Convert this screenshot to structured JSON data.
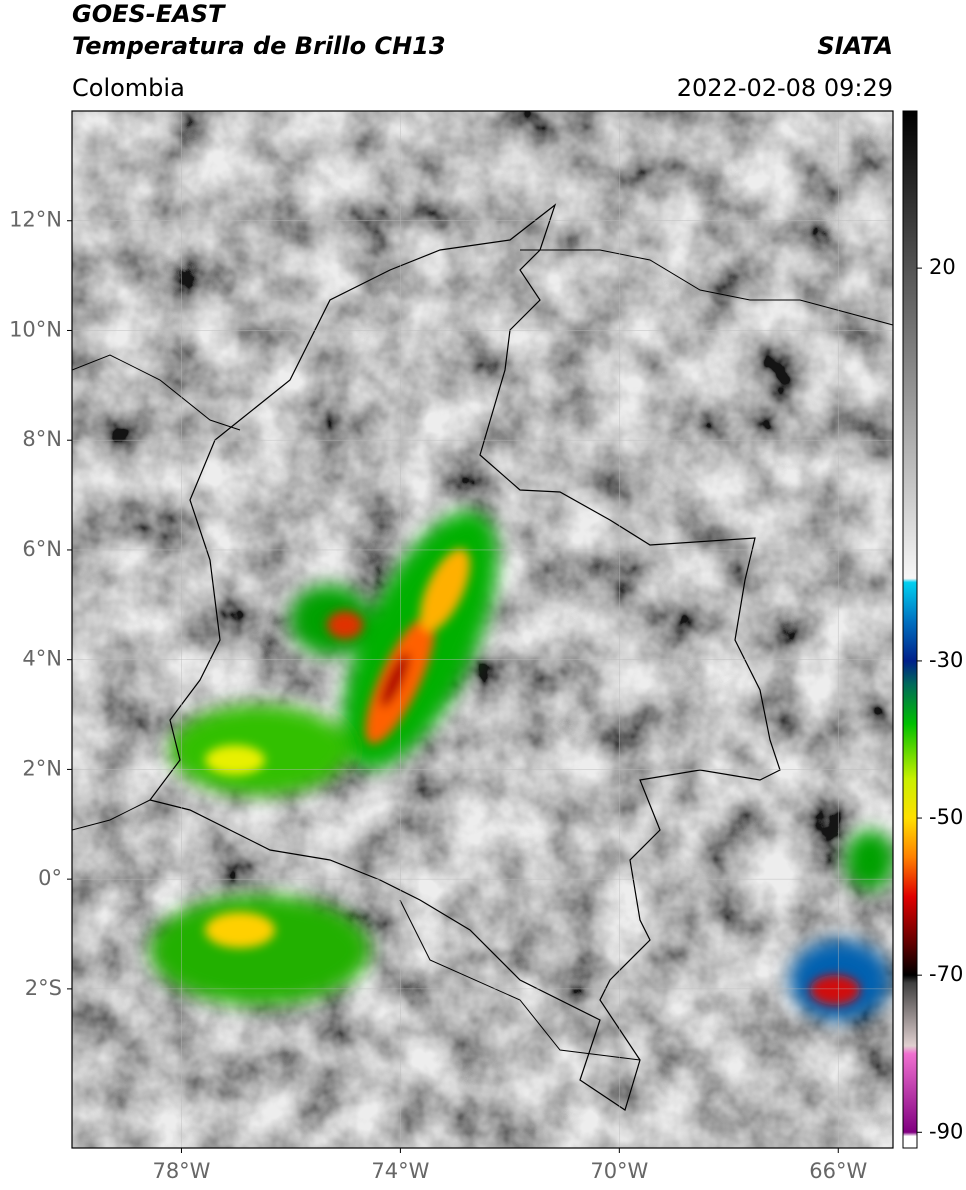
{
  "header": {
    "title": "GOES-EAST",
    "subtitle": "Temperatura de Brillo CH13",
    "source": "SIATA",
    "region": "Colombia",
    "datetime": "2022-02-08 09:29"
  },
  "map": {
    "xlim": [
      -80,
      -65
    ],
    "ylim": [
      -4.9,
      14
    ],
    "grid": true,
    "xticks": [
      {
        "value": -78,
        "label": "78°W"
      },
      {
        "value": -74,
        "label": "74°W"
      },
      {
        "value": -70,
        "label": "70°W"
      },
      {
        "value": -66,
        "label": "66°W"
      }
    ],
    "yticks": [
      {
        "value": 12,
        "label": "12°N"
      },
      {
        "value": 10,
        "label": "10°N"
      },
      {
        "value": 8,
        "label": "8°N"
      },
      {
        "value": 6,
        "label": "6°N"
      },
      {
        "value": 4,
        "label": "4°N"
      },
      {
        "value": 2,
        "label": "2°N"
      },
      {
        "value": 0,
        "label": "0°"
      },
      {
        "value": -2,
        "label": "2°S"
      }
    ]
  },
  "colorbar": {
    "lim": [
      -92,
      40
    ],
    "ticks": [
      20,
      -30,
      -50,
      -70,
      -90
    ],
    "stops": [
      {
        "value": 40,
        "color": "#000000"
      },
      {
        "value": -19.5,
        "color": "#f7f7f7"
      },
      {
        "value": -20,
        "color": "#00d0f0"
      },
      {
        "value": -25,
        "color": "#0070c0"
      },
      {
        "value": -30,
        "color": "#00208a"
      },
      {
        "value": -33,
        "color": "#006a5a"
      },
      {
        "value": -38,
        "color": "#00c000"
      },
      {
        "value": -45,
        "color": "#c8f000"
      },
      {
        "value": -50,
        "color": "#ffe000"
      },
      {
        "value": -55,
        "color": "#ff8000"
      },
      {
        "value": -60,
        "color": "#e00000"
      },
      {
        "value": -66,
        "color": "#600000"
      },
      {
        "value": -70,
        "color": "#000000"
      },
      {
        "value": -71,
        "color": "#404040"
      },
      {
        "value": -79,
        "color": "#e0d0d0"
      },
      {
        "value": -80,
        "color": "#f070d0"
      },
      {
        "value": -90,
        "color": "#800080"
      },
      {
        "value": -90.5,
        "color": "#ffffff"
      },
      {
        "value": -92,
        "color": "#ffffff"
      }
    ]
  }
}
